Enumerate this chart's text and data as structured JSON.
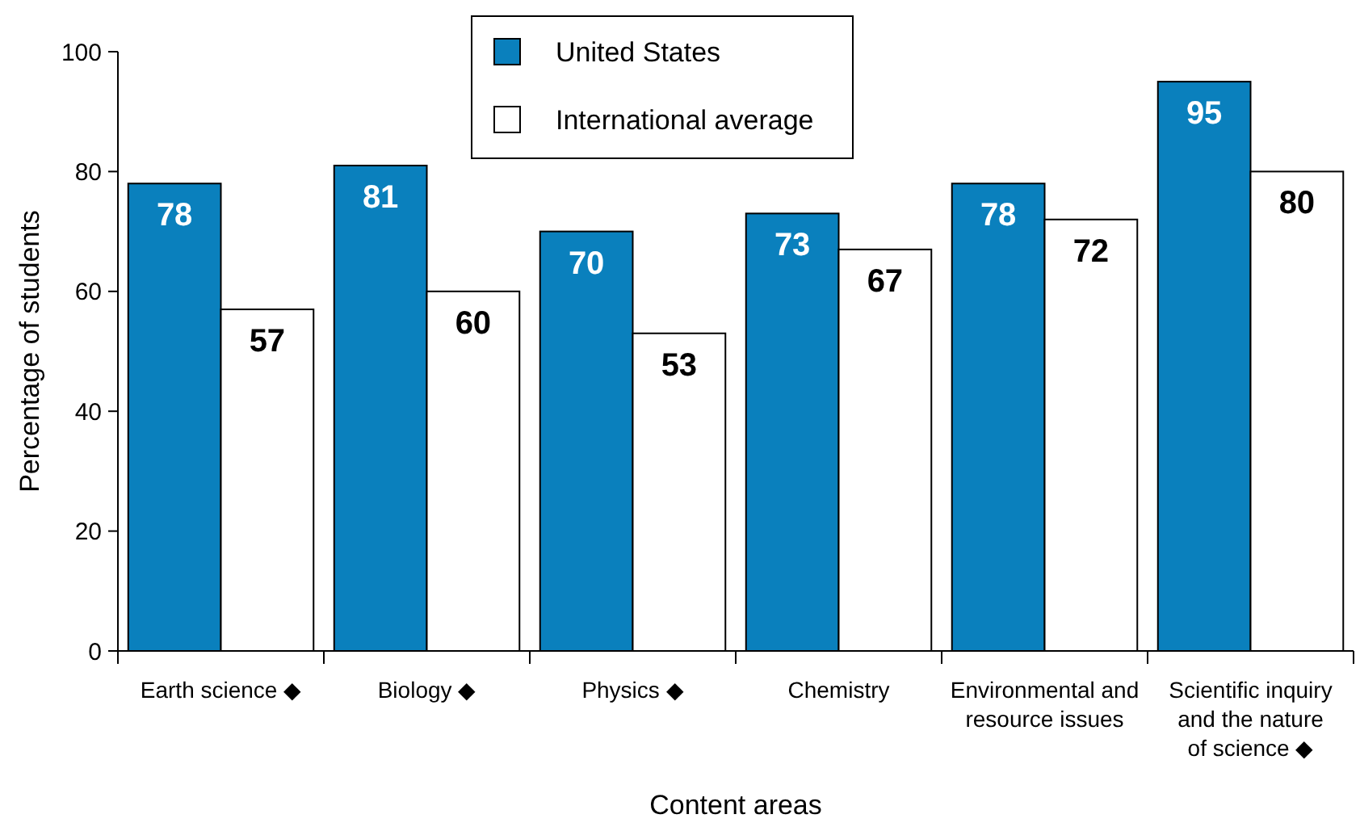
{
  "chart_data": {
    "type": "bar",
    "xlabel": "Content areas",
    "ylabel": "Percentage of students",
    "categories": [
      "Earth science ◆",
      "Biology ◆",
      "Physics ◆",
      "Chemistry",
      "Environmental and\nresource issues",
      "Scientific inquiry\nand the nature\nof science ◆"
    ],
    "series": [
      {
        "name": "United States",
        "color": "#0a80bd",
        "values": [
          78,
          81,
          70,
          73,
          78,
          95
        ]
      },
      {
        "name": "International average",
        "color": "#ffffff",
        "values": [
          57,
          60,
          53,
          67,
          72,
          80
        ]
      }
    ],
    "ylim": [
      0,
      100
    ],
    "yticks": [
      0,
      20,
      40,
      60,
      80,
      100
    ],
    "grid": false,
    "legend": "top",
    "data_labels": true
  }
}
